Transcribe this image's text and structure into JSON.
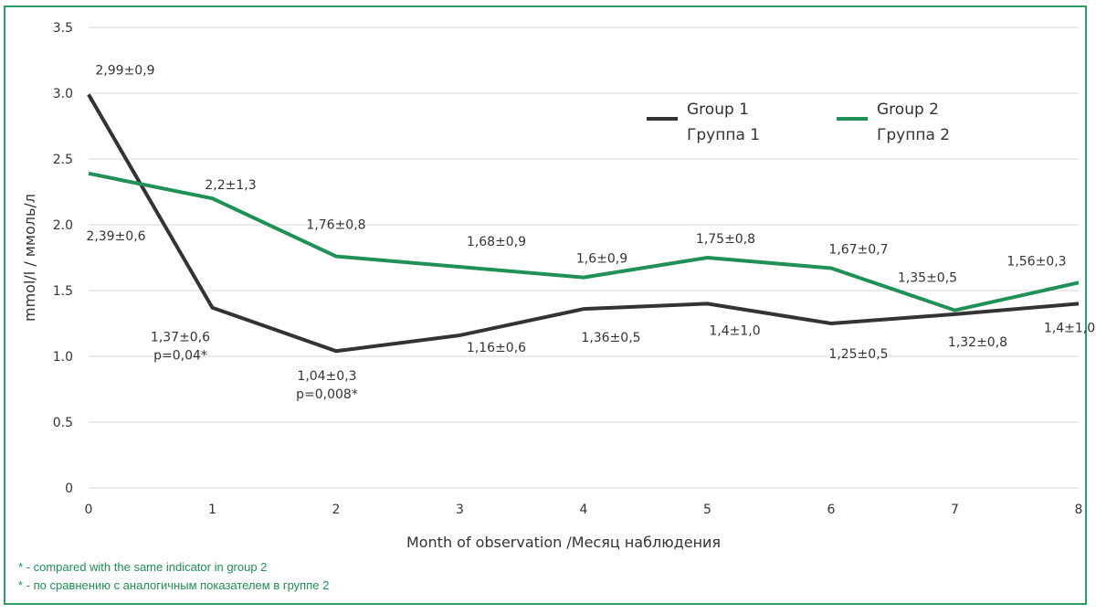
{
  "chart_data": {
    "type": "line",
    "x": [
      0,
      1,
      2,
      3,
      4,
      5,
      6,
      7,
      8
    ],
    "xlabel": "Month of observation /Месяц наблюдения",
    "ylabel": "mmol/l  /  ммоль/л",
    "ylim": [
      0,
      3.5
    ],
    "yticks": [
      "0",
      "0.5",
      "1.0",
      "1.5",
      "2.0",
      "2.5",
      "3.0",
      "3.5"
    ],
    "xticks": [
      "0",
      "1",
      "2",
      "3",
      "4",
      "5",
      "6",
      "7",
      "8"
    ],
    "grid": true,
    "legend_position": "top-right",
    "series": [
      {
        "name": "Group 1",
        "name_ru": "Группа 1",
        "color": "#333333",
        "values": [
          2.99,
          1.37,
          1.04,
          1.16,
          1.36,
          1.4,
          1.25,
          1.32,
          1.4
        ],
        "labels": [
          "2,99±0,9",
          "1,37±0,6",
          "1,04±0,3",
          "1,16±0,6",
          "1,36±0,5",
          "1,4±1,0",
          "1,25±0,5",
          "1,32±0,8",
          "1,4±1,0"
        ],
        "notes": [
          "",
          "p=0,04*",
          "p=0,008*",
          "",
          "",
          "",
          "",
          "",
          ""
        ]
      },
      {
        "name": "Group 2",
        "name_ru": "Группа 2",
        "color": "#1f9156",
        "values": [
          2.39,
          2.2,
          1.76,
          1.68,
          1.6,
          1.75,
          1.67,
          1.35,
          1.56
        ],
        "labels": [
          "2,39±0,6",
          "2,2±1,3",
          "1,76±0,8",
          "1,68±0,9",
          "1,6±0,9",
          "1,75±0,8",
          "1,67±0,7",
          "1,35±0,5",
          "1,56±0,3"
        ],
        "notes": [
          "",
          "",
          "",
          "",
          "",
          "",
          "",
          "",
          ""
        ]
      }
    ]
  },
  "footnotes": {
    "en": "* - compared with the same indicator in group 2",
    "ru": "* - по сравнению с аналогичным показателем в группе 2"
  },
  "colors": {
    "frame": "#2e9e64",
    "grid": "#d9d9d9",
    "footnote": "#1e8f52"
  }
}
